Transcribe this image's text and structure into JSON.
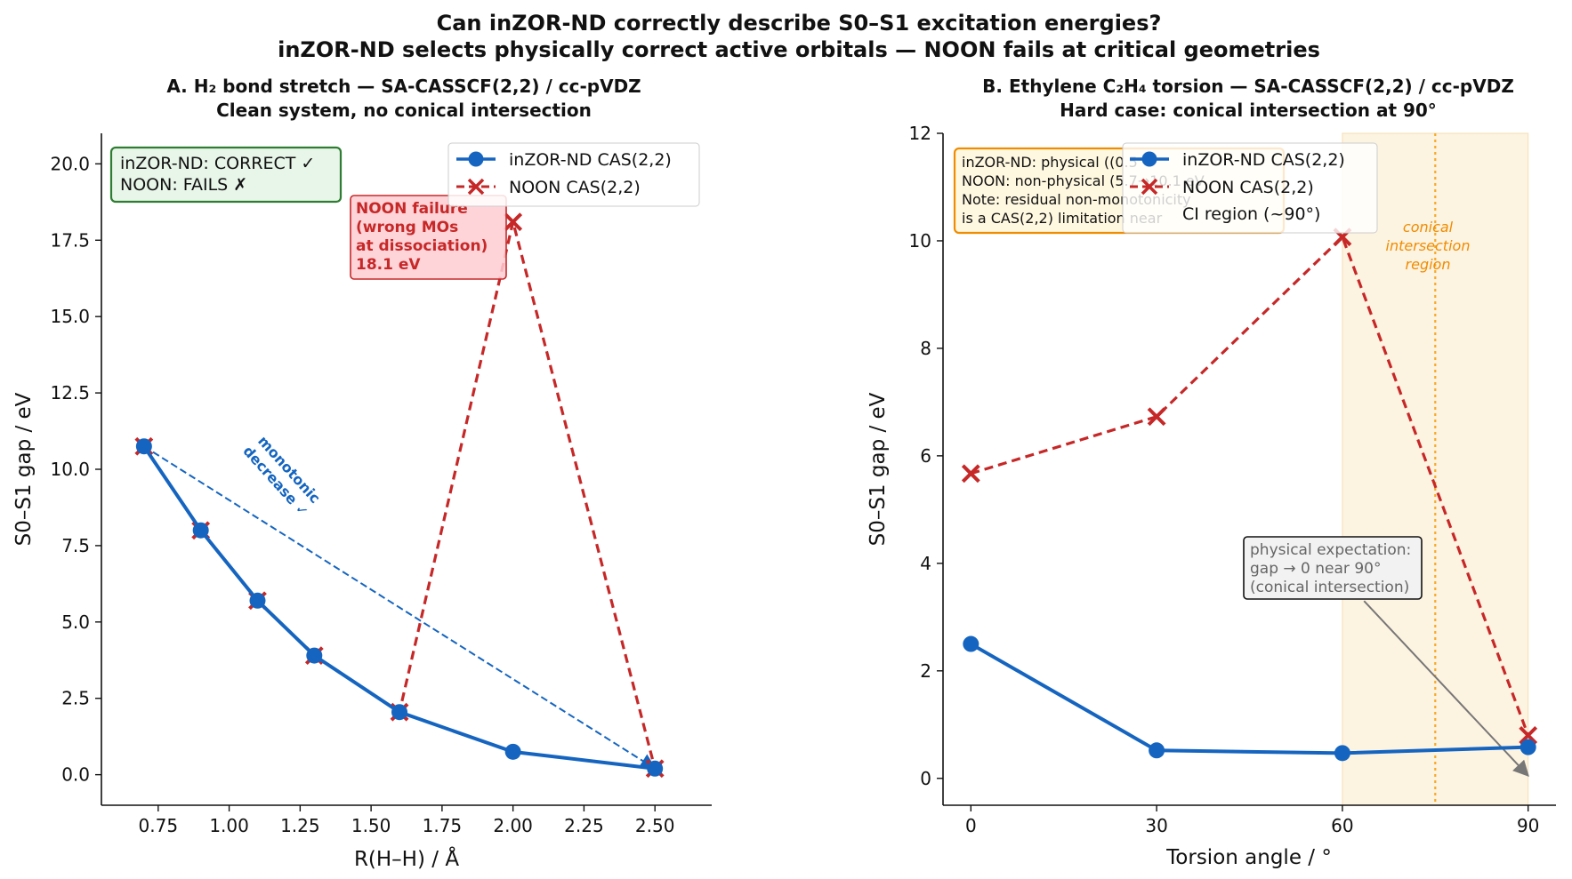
{
  "suptitle": {
    "line1": "Can inZOR-ND correctly describe S0–S1 excitation energies?",
    "line2": "inZOR-ND selects physically correct active orbitals — NOON fails at critical geometries"
  },
  "colors": {
    "inzor": "#1565c0",
    "noon": "#c62828",
    "ci_band": "#fdf3e1",
    "ci_line": "#f9a825",
    "ci_text": "#ef8c00",
    "green_box_fill": "#e8f5e9",
    "green_box_edge": "#2e7d32",
    "red_box_fill": "#ffcdd2",
    "orange_box_fill": "#fff8e1",
    "orange_box_edge": "#ef8c00",
    "grey": "#777777"
  },
  "panels": {
    "a": {
      "title1": "A.  H₂ bond stretch  —  SA-CASSCF(2,2) / cc-pVDZ",
      "title2": "Clean system, no conical intersection",
      "verdict_line1": "inZOR-ND: CORRECT ✓",
      "verdict_line2": "NOON: FAILS ✗",
      "failure_line1": "NOON failure",
      "failure_line2": "(wrong MOs",
      "failure_line3": "at dissociation)",
      "failure_line4": "18.1 eV",
      "trend_line1": "monotonic",
      "trend_line2": "decrease ✓",
      "legend": [
        "inZOR-ND  CAS(2,2)",
        "NOON  CAS(2,2)"
      ]
    },
    "b": {
      "title1": "B.  Ethylene C₂H₄ torsion  —  SA-CASSCF(2,2) / cc-pVDZ",
      "title2": "Hard case: conical intersection at 90°",
      "info_line1": "inZOR-ND: physical ((0.5",
      "info_line2": "NOON: non-physical (5.7→10.1 eV",
      "info_line3": "Note: residual non-monotonicity",
      "info_line4": "is a CAS(2,2) limitation near",
      "ci_label1": "conical",
      "ci_label2": "intersection",
      "ci_label3": "region",
      "expect_line1": "physical expectation:",
      "expect_line2": "gap → 0 near 90°",
      "expect_line3": "(conical intersection)",
      "legend": [
        "inZOR-ND  CAS(2,2)",
        "NOON  CAS(2,2)",
        "CI region (~90°)"
      ]
    }
  },
  "chart_data": [
    {
      "type": "line",
      "title": "A.  H₂ bond stretch  —  SA-CASSCF(2,2) / cc-pVDZ",
      "subtitle": "Clean system, no conical intersection",
      "xlabel": "R(H–H)  / Å",
      "ylabel": "S0–S1 gap  / eV",
      "xlim": [
        0.55,
        2.7
      ],
      "ylim": [
        -1.0,
        21.0
      ],
      "xticks": [
        0.75,
        1.0,
        1.25,
        1.5,
        1.75,
        2.0,
        2.25,
        2.5
      ],
      "xtick_labels": [
        "0.75",
        "1.00",
        "1.25",
        "1.50",
        "1.75",
        "2.00",
        "2.25",
        "2.50"
      ],
      "yticks": [
        0,
        2.5,
        5,
        7.5,
        10,
        12.5,
        15,
        17.5,
        20
      ],
      "ytick_labels": [
        "0.0",
        "2.5",
        "5.0",
        "7.5",
        "10.0",
        "12.5",
        "15.0",
        "17.5",
        "20.0"
      ],
      "legend_position": "upper right",
      "series": [
        {
          "name": "inZOR-ND  CAS(2,2)",
          "x": [
            0.7,
            0.9,
            1.1,
            1.3,
            1.6,
            2.0,
            2.5
          ],
          "y": [
            10.75,
            8.0,
            5.7,
            3.9,
            2.05,
            0.75,
            0.2
          ]
        },
        {
          "name": "NOON  CAS(2,2)",
          "x": [
            0.7,
            0.9,
            1.1,
            1.3,
            1.6,
            2.0,
            2.5
          ],
          "y": [
            10.75,
            8.0,
            5.7,
            3.9,
            2.05,
            18.1,
            0.2
          ]
        }
      ],
      "annotation_arrow": {
        "from": [
          0.7,
          10.75
        ],
        "to": [
          2.5,
          0.2
        ]
      }
    },
    {
      "type": "line",
      "title": "B.  Ethylene C₂H₄ torsion  —  SA-CASSCF(2,2) / cc-pVDZ",
      "subtitle": "Hard case: conical intersection at 90°",
      "xlabel": "Torsion angle  / °",
      "ylabel": "S0–S1 gap  / eV",
      "xlim": [
        -4.5,
        94.5
      ],
      "ylim": [
        -0.5,
        12.0
      ],
      "xticks": [
        0,
        30,
        60,
        90
      ],
      "xtick_labels": [
        "0",
        "30",
        "60",
        "90"
      ],
      "yticks": [
        0,
        2,
        4,
        6,
        8,
        10,
        12
      ],
      "ytick_labels": [
        "0",
        "2",
        "4",
        "6",
        "8",
        "10",
        "12"
      ],
      "legend_position": "upper center",
      "ci_region": [
        60,
        90
      ],
      "ci_line_x": 75,
      "series": [
        {
          "name": "inZOR-ND  CAS(2,2)",
          "x": [
            0,
            30,
            60,
            90
          ],
          "y": [
            2.5,
            0.52,
            0.47,
            0.58
          ]
        },
        {
          "name": "NOON  CAS(2,2)",
          "x": [
            0,
            30,
            60,
            90
          ],
          "y": [
            5.67,
            6.73,
            10.07,
            0.8
          ]
        }
      ],
      "annotation_arrow": {
        "from": [
          63.5,
          3.3
        ],
        "to": [
          90,
          0.05
        ]
      }
    }
  ]
}
